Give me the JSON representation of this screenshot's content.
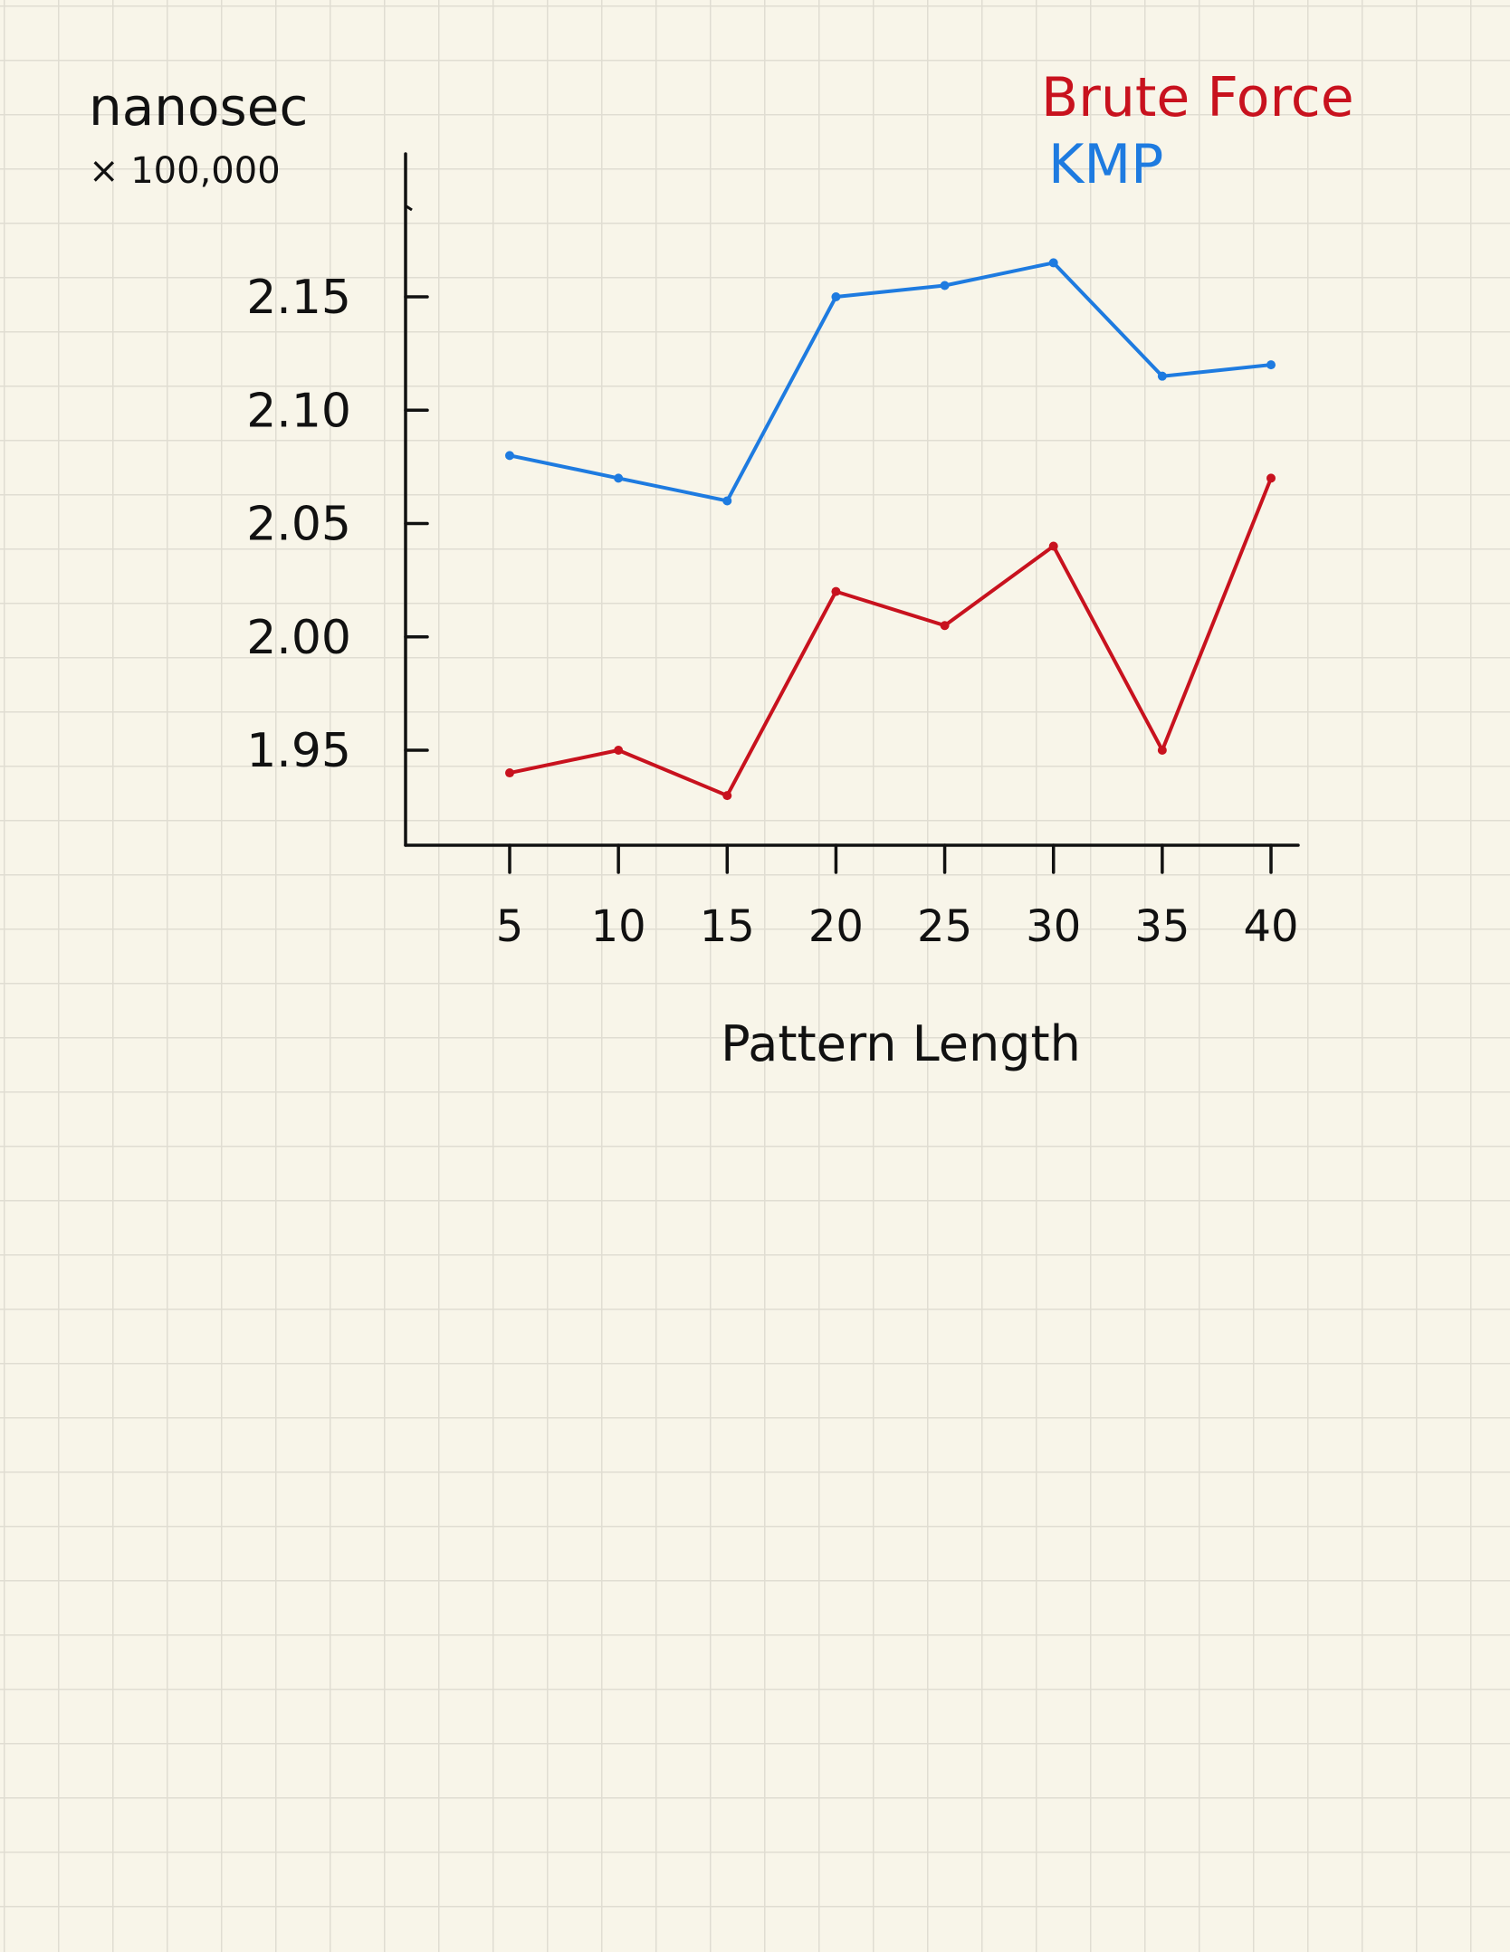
{
  "chart_data": {
    "type": "line",
    "title": "",
    "xlabel": "Pattern Length",
    "ylabel": "nanosec",
    "ylabel_scale": "× 100,000",
    "x": [
      5,
      10,
      15,
      20,
      25,
      30,
      35,
      40
    ],
    "x_tick_labels": [
      "5",
      "10",
      "15",
      "20",
      "25",
      "30",
      "35",
      "40"
    ],
    "y_ticks": [
      1.95,
      2.0,
      2.05,
      2.1,
      2.15
    ],
    "y_tick_labels": [
      "1.95",
      "2.00",
      "2.05",
      "2.10",
      "2.15"
    ],
    "ylim": [
      1.91,
      2.2
    ],
    "grid": false,
    "legend_position": "top-right",
    "series": [
      {
        "name": "Brute Force",
        "color": "#c8121e",
        "values": [
          1.94,
          1.95,
          1.93,
          2.02,
          2.005,
          2.04,
          1.95,
          2.07
        ]
      },
      {
        "name": "KMP",
        "color": "#1e7be0",
        "values": [
          2.08,
          2.07,
          2.06,
          2.15,
          2.155,
          2.165,
          2.115,
          2.12
        ]
      }
    ]
  }
}
